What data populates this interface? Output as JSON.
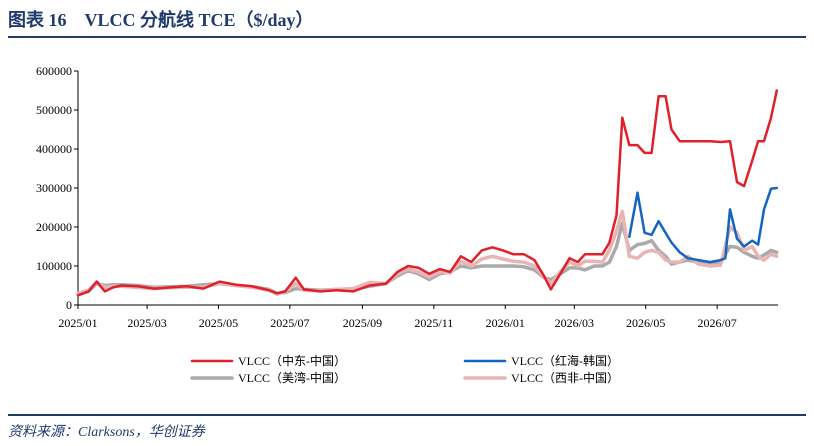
{
  "figure": {
    "title": "图表 16　VLCC 分航线 TCE（$/day）",
    "source": "资料来源：Clarksons，华创证券"
  },
  "chart_data": {
    "type": "line",
    "title": "",
    "xlabel": "",
    "ylabel": "",
    "ylim": [
      0,
      600000
    ],
    "yticks": [
      0,
      100000,
      200000,
      300000,
      400000,
      500000,
      600000
    ],
    "ytick_labels": [
      "0",
      "100000",
      "200000",
      "300000",
      "400000",
      "500000",
      "600000"
    ],
    "xlim": [
      "2025-01-01",
      "2026-08-22"
    ],
    "xticks": [
      "2025-01-01",
      "2025-03-01",
      "2025-05-01",
      "2025-07-01",
      "2025-09-01",
      "2025-11-01",
      "2026-01-01",
      "2026-03-01",
      "2026-05-01",
      "2026-07-01"
    ],
    "xtick_labels": [
      "2025/01",
      "2025/03",
      "2025/05",
      "2025/07",
      "2025/09",
      "2025/11",
      "2026/01",
      "2026/03",
      "2026/05",
      "2026/07"
    ],
    "grid": false,
    "legend": "bottom",
    "series": [
      {
        "name": "VLCC（中东-中国）",
        "color": "#e0202a",
        "width": 2.5,
        "points": [
          [
            "2025-01-01",
            25000
          ],
          [
            "2025-01-10",
            35000
          ],
          [
            "2025-01-17",
            60000
          ],
          [
            "2025-01-24",
            35000
          ],
          [
            "2025-01-31",
            45000
          ],
          [
            "2025-02-07",
            50000
          ],
          [
            "2025-02-21",
            48000
          ],
          [
            "2025-03-07",
            42000
          ],
          [
            "2025-03-21",
            45000
          ],
          [
            "2025-04-04",
            48000
          ],
          [
            "2025-04-18",
            42000
          ],
          [
            "2025-05-02",
            60000
          ],
          [
            "2025-05-16",
            52000
          ],
          [
            "2025-05-30",
            48000
          ],
          [
            "2025-06-13",
            38000
          ],
          [
            "2025-06-20",
            30000
          ],
          [
            "2025-06-27",
            35000
          ],
          [
            "2025-07-06",
            70000
          ],
          [
            "2025-07-13",
            40000
          ],
          [
            "2025-07-27",
            35000
          ],
          [
            "2025-08-10",
            38000
          ],
          [
            "2025-08-24",
            35000
          ],
          [
            "2025-09-07",
            50000
          ],
          [
            "2025-09-21",
            55000
          ],
          [
            "2025-10-01",
            85000
          ],
          [
            "2025-10-10",
            100000
          ],
          [
            "2025-10-19",
            95000
          ],
          [
            "2025-10-28",
            80000
          ],
          [
            "2025-11-06",
            92000
          ],
          [
            "2025-11-15",
            85000
          ],
          [
            "2025-11-24",
            125000
          ],
          [
            "2025-12-03",
            110000
          ],
          [
            "2025-12-12",
            140000
          ],
          [
            "2025-12-21",
            148000
          ],
          [
            "2025-12-30",
            140000
          ],
          [
            "2026-01-08",
            130000
          ],
          [
            "2026-01-17",
            130000
          ],
          [
            "2026-01-26",
            115000
          ],
          [
            "2026-02-03",
            75000
          ],
          [
            "2026-02-09",
            40000
          ],
          [
            "2026-02-17",
            80000
          ],
          [
            "2026-02-25",
            120000
          ],
          [
            "2026-03-04",
            110000
          ],
          [
            "2026-03-10",
            130000
          ],
          [
            "2026-03-18",
            130000
          ],
          [
            "2026-03-25",
            130000
          ],
          [
            "2026-03-31",
            160000
          ],
          [
            "2026-04-06",
            230000
          ],
          [
            "2026-04-11",
            480000
          ],
          [
            "2026-04-17",
            410000
          ],
          [
            "2026-04-24",
            410000
          ],
          [
            "2026-04-30",
            390000
          ],
          [
            "2026-05-06",
            390000
          ],
          [
            "2026-05-12",
            535000
          ],
          [
            "2026-05-18",
            535000
          ],
          [
            "2026-05-23",
            450000
          ],
          [
            "2026-05-30",
            420000
          ],
          [
            "2026-06-06",
            420000
          ],
          [
            "2026-06-15",
            420000
          ],
          [
            "2026-06-25",
            420000
          ],
          [
            "2026-07-04",
            418000
          ],
          [
            "2026-07-12",
            420000
          ],
          [
            "2026-07-18",
            315000
          ],
          [
            "2026-07-24",
            305000
          ],
          [
            "2026-07-31",
            370000
          ],
          [
            "2026-08-05",
            420000
          ],
          [
            "2026-08-10",
            420000
          ],
          [
            "2026-08-16",
            480000
          ],
          [
            "2026-08-21",
            550000
          ]
        ]
      },
      {
        "name": "VLCC（红海-韩国）",
        "color": "#1565c0",
        "width": 2.5,
        "points": [
          [
            "2026-04-17",
            175000
          ],
          [
            "2026-04-24",
            288000
          ],
          [
            "2026-04-30",
            185000
          ],
          [
            "2026-05-06",
            180000
          ],
          [
            "2026-05-12",
            215000
          ],
          [
            "2026-05-18",
            185000
          ],
          [
            "2026-05-23",
            160000
          ],
          [
            "2026-05-30",
            135000
          ],
          [
            "2026-06-06",
            120000
          ],
          [
            "2026-06-15",
            115000
          ],
          [
            "2026-06-25",
            110000
          ],
          [
            "2026-07-04",
            115000
          ],
          [
            "2026-07-08",
            120000
          ],
          [
            "2026-07-12",
            245000
          ],
          [
            "2026-07-18",
            170000
          ],
          [
            "2026-07-24",
            150000
          ],
          [
            "2026-07-31",
            165000
          ],
          [
            "2026-08-05",
            155000
          ],
          [
            "2026-08-10",
            245000
          ],
          [
            "2026-08-16",
            298000
          ],
          [
            "2026-08-21",
            300000
          ]
        ]
      },
      {
        "name": "VLCC（美湾-中国）",
        "color": "#aaaaaa",
        "width": 3.5,
        "points": [
          [
            "2025-01-01",
            28000
          ],
          [
            "2025-01-10",
            35000
          ],
          [
            "2025-01-17",
            55000
          ],
          [
            "2025-01-24",
            50000
          ],
          [
            "2025-01-31",
            52000
          ],
          [
            "2025-02-07",
            52000
          ],
          [
            "2025-02-21",
            50000
          ],
          [
            "2025-03-07",
            45000
          ],
          [
            "2025-03-21",
            47000
          ],
          [
            "2025-04-04",
            48000
          ],
          [
            "2025-04-18",
            52000
          ],
          [
            "2025-05-02",
            55000
          ],
          [
            "2025-05-16",
            50000
          ],
          [
            "2025-05-30",
            47000
          ],
          [
            "2025-06-13",
            40000
          ],
          [
            "2025-06-20",
            30000
          ],
          [
            "2025-06-27",
            32000
          ],
          [
            "2025-07-06",
            42000
          ],
          [
            "2025-07-13",
            40000
          ],
          [
            "2025-07-27",
            38000
          ],
          [
            "2025-08-10",
            40000
          ],
          [
            "2025-08-24",
            40000
          ],
          [
            "2025-09-07",
            48000
          ],
          [
            "2025-09-21",
            55000
          ],
          [
            "2025-10-01",
            75000
          ],
          [
            "2025-10-10",
            88000
          ],
          [
            "2025-10-19",
            80000
          ],
          [
            "2025-10-28",
            65000
          ],
          [
            "2025-11-06",
            80000
          ],
          [
            "2025-11-15",
            85000
          ],
          [
            "2025-11-24",
            100000
          ],
          [
            "2025-12-03",
            95000
          ],
          [
            "2025-12-12",
            100000
          ],
          [
            "2025-12-21",
            100000
          ],
          [
            "2025-12-30",
            100000
          ],
          [
            "2026-01-08",
            100000
          ],
          [
            "2026-01-17",
            98000
          ],
          [
            "2026-01-26",
            90000
          ],
          [
            "2026-02-03",
            70000
          ],
          [
            "2026-02-09",
            65000
          ],
          [
            "2026-02-17",
            80000
          ],
          [
            "2026-02-25",
            95000
          ],
          [
            "2026-03-04",
            95000
          ],
          [
            "2026-03-10",
            90000
          ],
          [
            "2026-03-18",
            100000
          ],
          [
            "2026-03-25",
            100000
          ],
          [
            "2026-03-31",
            110000
          ],
          [
            "2026-04-06",
            150000
          ],
          [
            "2026-04-11",
            210000
          ],
          [
            "2026-04-17",
            140000
          ],
          [
            "2026-04-24",
            155000
          ],
          [
            "2026-04-30",
            158000
          ],
          [
            "2026-05-06",
            165000
          ],
          [
            "2026-05-12",
            140000
          ],
          [
            "2026-05-18",
            125000
          ],
          [
            "2026-05-23",
            105000
          ],
          [
            "2026-05-30",
            110000
          ],
          [
            "2026-06-06",
            115000
          ],
          [
            "2026-06-15",
            110000
          ],
          [
            "2026-06-25",
            108000
          ],
          [
            "2026-07-04",
            110000
          ],
          [
            "2026-07-12",
            150000
          ],
          [
            "2026-07-18",
            148000
          ],
          [
            "2026-07-24",
            135000
          ],
          [
            "2026-07-31",
            125000
          ],
          [
            "2026-08-05",
            120000
          ],
          [
            "2026-08-10",
            128000
          ],
          [
            "2026-08-16",
            140000
          ],
          [
            "2026-08-21",
            135000
          ]
        ]
      },
      {
        "name": "VLCC（西非-中国）",
        "color": "#e8b4b4",
        "width": 3.5,
        "points": [
          [
            "2025-01-01",
            30000
          ],
          [
            "2025-01-10",
            38000
          ],
          [
            "2025-01-17",
            58000
          ],
          [
            "2025-01-24",
            45000
          ],
          [
            "2025-01-31",
            48000
          ],
          [
            "2025-02-07",
            48000
          ],
          [
            "2025-02-21",
            45000
          ],
          [
            "2025-03-07",
            42000
          ],
          [
            "2025-03-21",
            44000
          ],
          [
            "2025-04-04",
            46000
          ],
          [
            "2025-04-18",
            45000
          ],
          [
            "2025-05-02",
            55000
          ],
          [
            "2025-05-16",
            50000
          ],
          [
            "2025-05-30",
            45000
          ],
          [
            "2025-06-13",
            38000
          ],
          [
            "2025-06-20",
            28000
          ],
          [
            "2025-06-27",
            35000
          ],
          [
            "2025-07-06",
            55000
          ],
          [
            "2025-07-13",
            38000
          ],
          [
            "2025-07-27",
            36000
          ],
          [
            "2025-08-10",
            40000
          ],
          [
            "2025-08-24",
            42000
          ],
          [
            "2025-09-07",
            58000
          ],
          [
            "2025-09-21",
            55000
          ],
          [
            "2025-10-01",
            80000
          ],
          [
            "2025-10-10",
            92000
          ],
          [
            "2025-10-19",
            85000
          ],
          [
            "2025-10-28",
            72000
          ],
          [
            "2025-11-06",
            85000
          ],
          [
            "2025-11-15",
            82000
          ],
          [
            "2025-11-24",
            112000
          ],
          [
            "2025-12-03",
            100000
          ],
          [
            "2025-12-12",
            118000
          ],
          [
            "2025-12-21",
            125000
          ],
          [
            "2025-12-30",
            118000
          ],
          [
            "2026-01-08",
            112000
          ],
          [
            "2026-01-17",
            110000
          ],
          [
            "2026-01-26",
            100000
          ],
          [
            "2026-02-03",
            72000
          ],
          [
            "2026-02-09",
            55000
          ],
          [
            "2026-02-17",
            85000
          ],
          [
            "2026-02-25",
            110000
          ],
          [
            "2026-03-04",
            100000
          ],
          [
            "2026-03-10",
            112000
          ],
          [
            "2026-03-18",
            112000
          ],
          [
            "2026-03-25",
            110000
          ],
          [
            "2026-03-31",
            140000
          ],
          [
            "2026-04-06",
            190000
          ],
          [
            "2026-04-11",
            240000
          ],
          [
            "2026-04-17",
            125000
          ],
          [
            "2026-04-24",
            120000
          ],
          [
            "2026-04-30",
            135000
          ],
          [
            "2026-05-06",
            140000
          ],
          [
            "2026-05-12",
            135000
          ],
          [
            "2026-05-18",
            115000
          ],
          [
            "2026-05-23",
            110000
          ],
          [
            "2026-05-30",
            110000
          ],
          [
            "2026-06-06",
            125000
          ],
          [
            "2026-06-15",
            105000
          ],
          [
            "2026-06-25",
            100000
          ],
          [
            "2026-07-04",
            102000
          ],
          [
            "2026-07-12",
            200000
          ],
          [
            "2026-07-18",
            185000
          ],
          [
            "2026-07-24",
            140000
          ],
          [
            "2026-07-31",
            150000
          ],
          [
            "2026-08-05",
            125000
          ],
          [
            "2026-08-10",
            115000
          ],
          [
            "2026-08-16",
            130000
          ],
          [
            "2026-08-21",
            125000
          ]
        ]
      }
    ]
  }
}
